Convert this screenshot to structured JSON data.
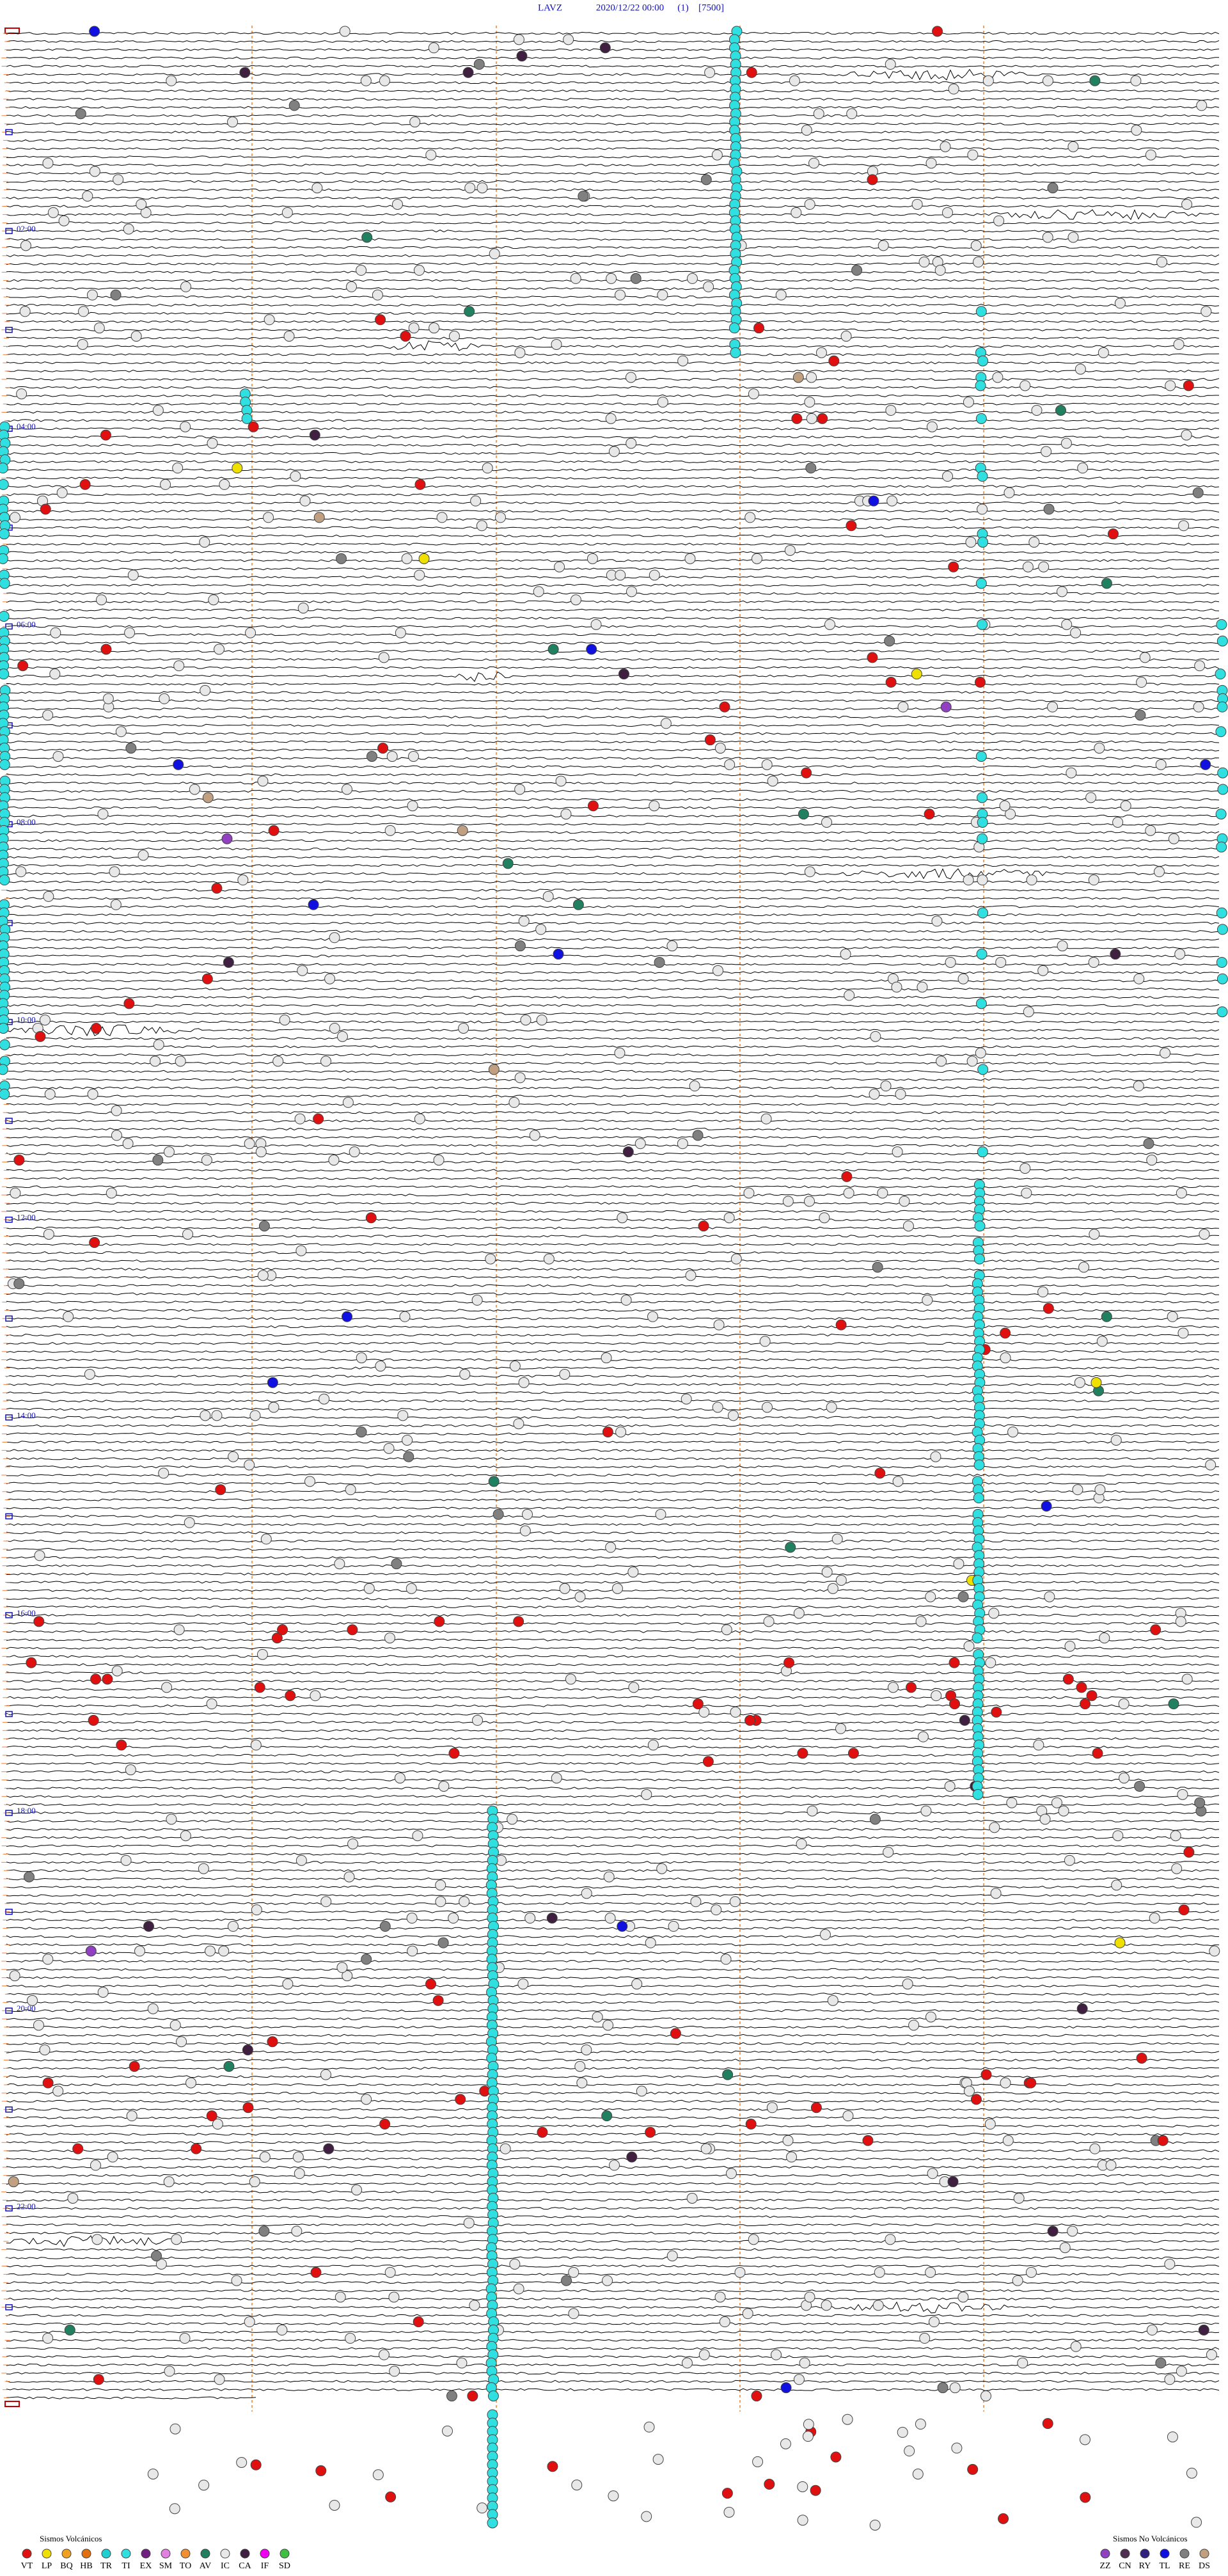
{
  "header": {
    "station": "LAVZ",
    "datetime": "2020/12/22 00:00",
    "channel": "(1)",
    "scale": "[7500]"
  },
  "hour_labels": [
    "02:00",
    "04:00",
    "06:00",
    "08:00",
    "10:00",
    "12:00",
    "14:00",
    "16:00",
    "18:00",
    "20:00",
    "22:00"
  ],
  "legend": {
    "volcanic": {
      "title": "Sismos Volcánicos",
      "items": [
        {
          "code": "VT",
          "color": "#e01010"
        },
        {
          "code": "LP",
          "color": "#f0e000"
        },
        {
          "code": "BQ",
          "color": "#f0a020"
        },
        {
          "code": "HB",
          "color": "#e07010"
        },
        {
          "code": "TR",
          "color": "#20d0d0"
        },
        {
          "code": "TI",
          "color": "#30e0e0"
        },
        {
          "code": "EX",
          "color": "#702080"
        },
        {
          "code": "SM",
          "color": "#e080e0"
        },
        {
          "code": "TO",
          "color": "#f09030"
        },
        {
          "code": "AV",
          "color": "#208060"
        },
        {
          "code": "IC",
          "color": "#e8e8e8"
        },
        {
          "code": "CA",
          "color": "#402040"
        },
        {
          "code": "IF",
          "color": "#f000f0"
        },
        {
          "code": "SD",
          "color": "#40c040"
        }
      ]
    },
    "non_volcanic": {
      "title": "Sismos No Volcánicos",
      "items": [
        {
          "code": "ZZ",
          "color": "#9040c0"
        },
        {
          "code": "CN",
          "color": "#503050"
        },
        {
          "code": "RY",
          "color": "#302080"
        },
        {
          "code": "TL",
          "color": "#1010e0"
        },
        {
          "code": "RE",
          "color": "#808080"
        },
        {
          "code": "DS",
          "color": "#c0a080"
        }
      ]
    }
  }
}
